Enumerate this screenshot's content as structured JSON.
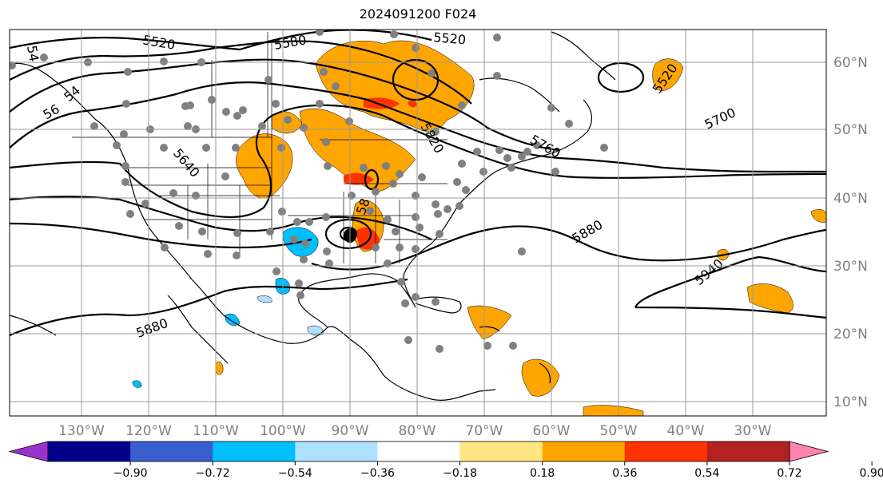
{
  "title": "2024091200 F024",
  "lat_labels": [
    "60°N",
    "50°N",
    "40°N",
    "30°N",
    "20°N",
    "10°N"
  ],
  "lon_labels": [
    "130°W",
    "120°W",
    "110°W",
    "100°W",
    "90°W",
    "80°W",
    "70°W",
    "60°W",
    "50°W",
    "40°W",
    "30°W"
  ],
  "contour_labels": [
    "5520",
    "5580",
    "5520",
    "5520",
    "5700",
    "5760",
    "5820",
    "5640",
    "5880",
    "5880",
    "5940",
    "54",
    "54",
    "56",
    "58"
  ],
  "colorbar": {
    "ticks": [
      "−0.90",
      "−0.72",
      "−0.54",
      "−0.36",
      "−0.18",
      "0.18",
      "0.36",
      "0.54",
      "0.72",
      "0.90"
    ],
    "colors": [
      "#9932cc",
      "#00008b",
      "#3a5fcd",
      "#00bfff",
      "#aee1ff",
      "#ffffff",
      "#ffe680",
      "#ffa500",
      "#ff3300",
      "#b22222",
      "#ff85b0"
    ]
  },
  "map": {
    "projection": "lat-lon",
    "lon_range": [
      -137,
      -15
    ],
    "lat_range": [
      8,
      66
    ],
    "fill_colors": {
      "orange": "#ffa500",
      "red": "#ff3300",
      "light_blue": "#aee1ff",
      "blue": "#00bfff",
      "yellow": "#ffe680",
      "station": "#808080"
    }
  }
}
